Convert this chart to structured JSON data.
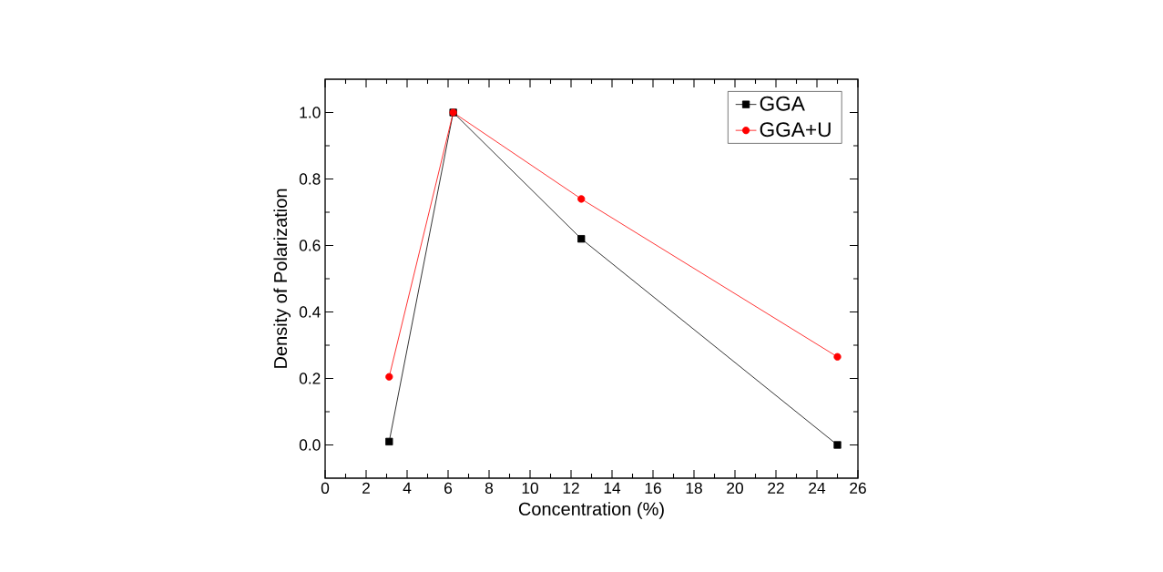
{
  "chart_data": {
    "type": "line",
    "xlabel": "Concentration (%)",
    "ylabel": "Density of Polarization",
    "x": [
      3.125,
      6.25,
      12.5,
      25
    ],
    "series": [
      {
        "name": "GGA",
        "color": "#000000",
        "marker": "square",
        "values": [
          0.01,
          1.0,
          0.62,
          0.0
        ]
      },
      {
        "name": "GGA+U",
        "color": "#ff0000",
        "marker": "circle",
        "values": [
          0.205,
          1.0,
          0.74,
          0.265
        ]
      }
    ],
    "xlim": [
      0,
      26
    ],
    "xticks": [
      0,
      2,
      4,
      6,
      8,
      10,
      12,
      14,
      16,
      18,
      20,
      22,
      24,
      26
    ],
    "ylim": [
      -0.1,
      1.1
    ],
    "yticks": [
      {
        "value": 0,
        "label": "0.0"
      },
      {
        "value": 0.2,
        "label": "0.2"
      },
      {
        "value": 0.4,
        "label": "0.4"
      },
      {
        "value": 0.6,
        "label": "0.6"
      },
      {
        "value": 0.8,
        "label": "0.8"
      },
      {
        "value": 1.0,
        "label": "1.0"
      }
    ],
    "grid": false,
    "legend": "top right",
    "line_style": "solid"
  }
}
